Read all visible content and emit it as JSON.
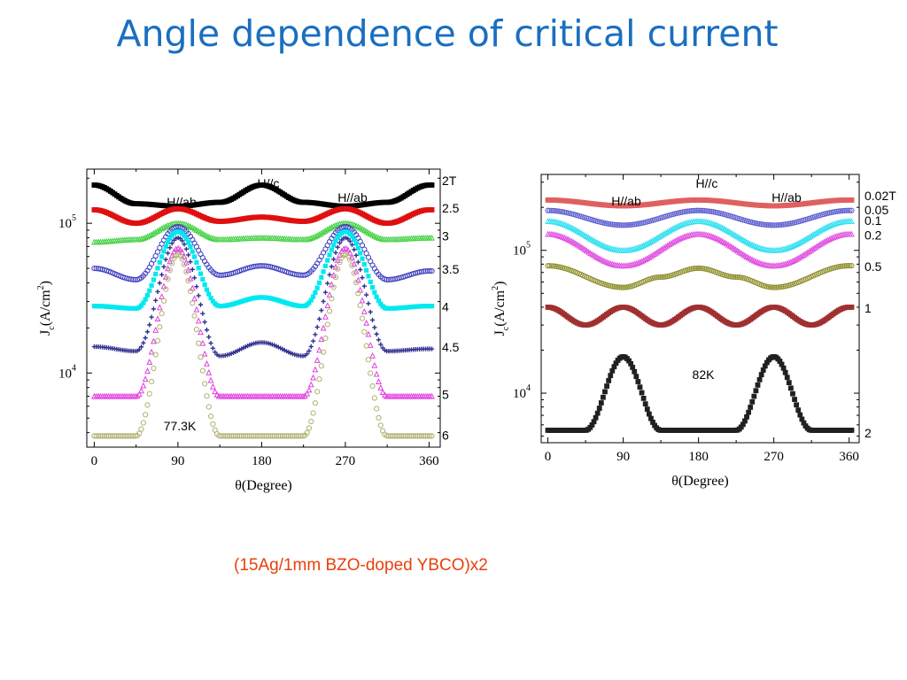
{
  "title": "Angle dependence of critical current",
  "caption": "(15Ag/1mm BZO-doped YBCO)x2",
  "chart_data": [
    {
      "type": "scatter",
      "ylabel": "J_c(A/cm^2)",
      "xlabel": "θ(Degree)",
      "x_ticks": [
        "0",
        "90",
        "180",
        "270",
        "360"
      ],
      "y_ticks": [
        "10^4",
        "10^5"
      ],
      "yscale": "log",
      "xlim": [
        -8,
        372
      ],
      "ylim": [
        3200,
        230000
      ],
      "temperature_label": "77.3K",
      "annotations": [
        "H//ab",
        "H//c",
        "H//ab"
      ],
      "series": [
        {
          "name": "2T",
          "color": "#000000",
          "marker": "square",
          "peak": 180,
          "points": [
            [
              0,
              180000
            ],
            [
              45,
              135000
            ],
            [
              90,
              130000
            ],
            [
              135,
              138000
            ],
            [
              180,
              180000
            ],
            [
              225,
              138000
            ],
            [
              270,
              130000
            ],
            [
              315,
              138000
            ],
            [
              360,
              180000
            ]
          ]
        },
        {
          "name": "2.5",
          "color": "#e01010",
          "marker": "square",
          "peak": 90,
          "points": [
            [
              0,
              123000
            ],
            [
              45,
              100000
            ],
            [
              90,
              125000
            ],
            [
              135,
              103000
            ],
            [
              180,
              110000
            ],
            [
              225,
              103000
            ],
            [
              270,
              125000
            ],
            [
              315,
              100000
            ],
            [
              360,
              123000
            ]
          ]
        },
        {
          "name": "3",
          "color": "#40d040",
          "marker": "triangle",
          "peak": 90,
          "points": [
            [
              0,
              75000
            ],
            [
              45,
              78000
            ],
            [
              90,
              100000
            ],
            [
              135,
              78000
            ],
            [
              180,
              80000
            ],
            [
              225,
              78000
            ],
            [
              270,
              100000
            ],
            [
              315,
              78000
            ],
            [
              360,
              80000
            ]
          ]
        },
        {
          "name": "3.5",
          "color": "#4040c0",
          "marker": "circle",
          "peak": 90,
          "points": [
            [
              0,
              50000
            ],
            [
              45,
              42000
            ],
            [
              90,
              95000
            ],
            [
              135,
              45000
            ],
            [
              180,
              52000
            ],
            [
              225,
              45000
            ],
            [
              270,
              95000
            ],
            [
              315,
              42000
            ],
            [
              360,
              48000
            ]
          ]
        },
        {
          "name": "4",
          "color": "#00e8f0",
          "marker": "star",
          "peak": 90,
          "points": [
            [
              0,
              28000
            ],
            [
              45,
              27000
            ],
            [
              90,
              88000
            ],
            [
              135,
              28000
            ],
            [
              180,
              32000
            ],
            [
              225,
              28000
            ],
            [
              270,
              88000
            ],
            [
              315,
              27000
            ],
            [
              360,
              28000
            ]
          ]
        },
        {
          "name": "4.5",
          "color": "#303090",
          "marker": "cross",
          "peak": 90,
          "points": [
            [
              0,
              15000
            ],
            [
              45,
              14000
            ],
            [
              90,
              80000
            ],
            [
              135,
              13000
            ],
            [
              180,
              16000
            ],
            [
              225,
              13000
            ],
            [
              270,
              80000
            ],
            [
              315,
              14000
            ],
            [
              360,
              14500
            ]
          ]
        },
        {
          "name": "5",
          "color": "#e040e0",
          "marker": "triangle",
          "peak": 90,
          "points": [
            [
              0,
              7000
            ],
            [
              45,
              7000
            ],
            [
              90,
              68000
            ],
            [
              135,
              7000
            ],
            [
              180,
              7000
            ],
            [
              225,
              7000
            ],
            [
              270,
              68000
            ],
            [
              315,
              7000
            ],
            [
              360,
              7000
            ]
          ]
        },
        {
          "name": "6",
          "color": "#b0b070",
          "marker": "circle",
          "peak": 90,
          "points": [
            [
              0,
              3800
            ],
            [
              45,
              3800
            ],
            [
              90,
              62000
            ],
            [
              135,
              3800
            ],
            [
              180,
              3800
            ],
            [
              225,
              3800
            ],
            [
              270,
              62000
            ],
            [
              315,
              3800
            ],
            [
              360,
              3800
            ]
          ]
        }
      ]
    },
    {
      "type": "scatter",
      "ylabel": "J_c(A/cm^2)",
      "xlabel": "θ(Degree)",
      "x_ticks": [
        "0",
        "90",
        "180",
        "270",
        "360"
      ],
      "y_ticks": [
        "10^4",
        "10^5"
      ],
      "yscale": "log",
      "xlim": [
        -8,
        372
      ],
      "ylim": [
        4500,
        340000
      ],
      "temperature_label": "82K",
      "annotations": [
        "H//ab",
        "H//c",
        "H//ab"
      ],
      "series": [
        {
          "name": "0.02T",
          "color": "#e06060",
          "marker": "square",
          "points": [
            [
              0,
              225000
            ],
            [
              90,
              205000
            ],
            [
              180,
              225000
            ],
            [
              270,
              205000
            ],
            [
              360,
              225000
            ]
          ]
        },
        {
          "name": "0.05",
          "color": "#6060d0",
          "marker": "circle",
          "points": [
            [
              0,
              190000
            ],
            [
              90,
              150000
            ],
            [
              180,
              190000
            ],
            [
              270,
              150000
            ],
            [
              360,
              190000
            ]
          ]
        },
        {
          "name": "0.1",
          "color": "#30e0f0",
          "marker": "triangle",
          "points": [
            [
              0,
              160000
            ],
            [
              90,
              100000
            ],
            [
              180,
              160000
            ],
            [
              270,
              100000
            ],
            [
              360,
              160000
            ]
          ]
        },
        {
          "name": "0.2",
          "color": "#e050e0",
          "marker": "triangle",
          "points": [
            [
              0,
              130000
            ],
            [
              90,
              78000
            ],
            [
              180,
              130000
            ],
            [
              270,
              78000
            ],
            [
              360,
              130000
            ]
          ]
        },
        {
          "name": "0.5",
          "color": "#909030",
          "marker": "circle",
          "points": [
            [
              0,
              78000
            ],
            [
              90,
              55000
            ],
            [
              135,
              65000
            ],
            [
              180,
              75000
            ],
            [
              225,
              65000
            ],
            [
              270,
              55000
            ],
            [
              360,
              78000
            ]
          ]
        },
        {
          "name": "1",
          "color": "#a03030",
          "marker": "square",
          "points": [
            [
              0,
              40000
            ],
            [
              45,
              30000
            ],
            [
              90,
              40000
            ],
            [
              135,
              30000
            ],
            [
              180,
              40000
            ],
            [
              225,
              30000
            ],
            [
              270,
              40000
            ],
            [
              315,
              30000
            ],
            [
              360,
              40000
            ]
          ]
        },
        {
          "name": "2",
          "color": "#202020",
          "marker": "square",
          "points": [
            [
              0,
              5500
            ],
            [
              45,
              5500
            ],
            [
              90,
              18000
            ],
            [
              135,
              5500
            ],
            [
              180,
              5500
            ],
            [
              225,
              5500
            ],
            [
              270,
              18000
            ],
            [
              315,
              5500
            ],
            [
              360,
              5500
            ]
          ]
        }
      ]
    }
  ]
}
